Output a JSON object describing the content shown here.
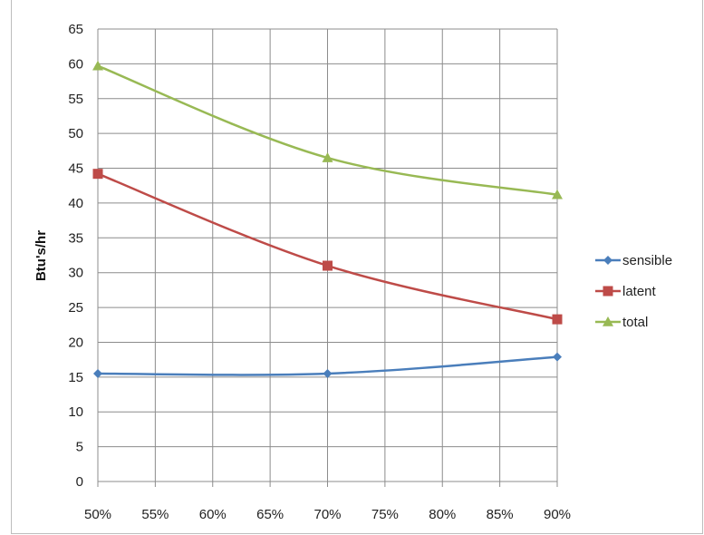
{
  "chart_data": {
    "type": "line",
    "ylabel": "Btu's/hr",
    "xlabel": "",
    "title": "",
    "x_ticks": [
      "50%",
      "55%",
      "60%",
      "65%",
      "70%",
      "75%",
      "80%",
      "85%",
      "90%"
    ],
    "y_ticks": [
      "0",
      "5",
      "10",
      "15",
      "20",
      "25",
      "30",
      "35",
      "40",
      "45",
      "50",
      "55",
      "60",
      "65"
    ],
    "ylim": [
      0,
      65
    ],
    "xlim": [
      50,
      90
    ],
    "grid": true,
    "legend_position": "right",
    "series": [
      {
        "name": "sensible",
        "color": "#4a7ebb",
        "marker": "diamond",
        "x": [
          50,
          70,
          90
        ],
        "y": [
          15.5,
          15.5,
          17.9
        ]
      },
      {
        "name": "latent",
        "color": "#be4b48",
        "marker": "square",
        "x": [
          50,
          70,
          90
        ],
        "y": [
          44.2,
          31.0,
          23.3
        ]
      },
      {
        "name": "total",
        "color": "#98b954",
        "marker": "triangle",
        "x": [
          50,
          70,
          90
        ],
        "y": [
          59.7,
          46.5,
          41.2
        ]
      }
    ]
  }
}
